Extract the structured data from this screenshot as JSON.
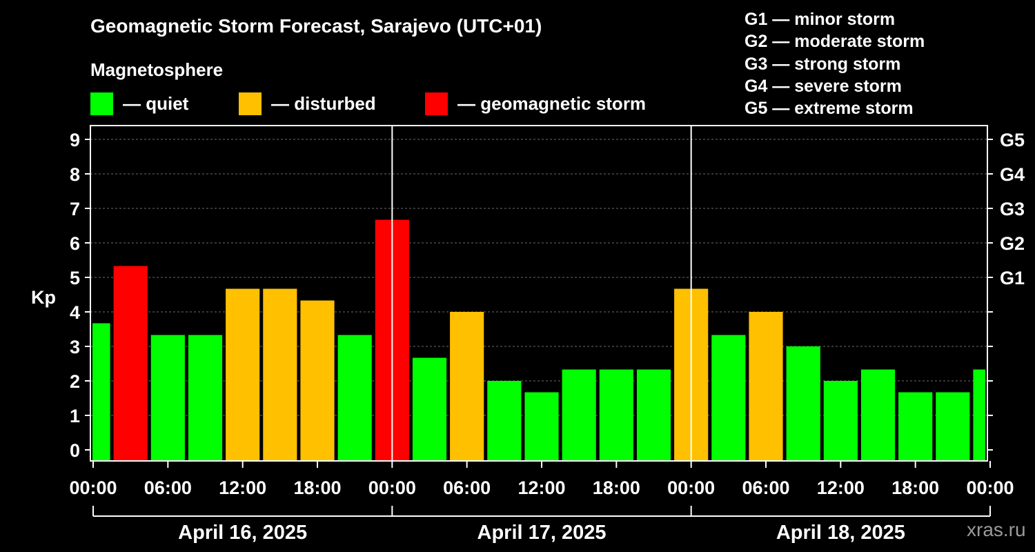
{
  "header": {
    "title": "Geomagnetic Storm Forecast, Sarajevo (UTC+01)",
    "subtitle": "Magnetosphere"
  },
  "legend": [
    {
      "label": "— quiet",
      "color": "#00ff00"
    },
    {
      "label": "— disturbed",
      "color": "#ffc000"
    },
    {
      "label": "— geomagnetic storm",
      "color": "#ff0000"
    }
  ],
  "storm_scale": [
    "G1 — minor storm",
    "G2 — moderate storm",
    "G3 — strong storm",
    "G4 — severe storm",
    "G5 — extreme storm"
  ],
  "watermark": "xras.ru",
  "colors": {
    "quiet": "#00ff00",
    "disturbed": "#ffc000",
    "storm": "#ff0000"
  },
  "chart_data": {
    "type": "bar",
    "title": "Geomagnetic Storm Forecast, Sarajevo (UTC+01)",
    "ylabel": "Kp",
    "ylim": [
      0,
      9
    ],
    "yticks": [
      "0",
      "1",
      "2",
      "3",
      "4",
      "5",
      "6",
      "7",
      "8",
      "9"
    ],
    "right_ticks": [
      {
        "kp": 5,
        "label": "G1"
      },
      {
        "kp": 6,
        "label": "G2"
      },
      {
        "kp": 7,
        "label": "G3"
      },
      {
        "kp": 8,
        "label": "G4"
      },
      {
        "kp": 9,
        "label": "G5"
      }
    ],
    "xtick_labels": [
      "00:00",
      "06:00",
      "12:00",
      "18:00",
      "00:00",
      "06:00",
      "12:00",
      "18:00",
      "00:00",
      "06:00",
      "12:00",
      "18:00",
      "00:00"
    ],
    "days": [
      "April 16, 2025",
      "April 17, 2025",
      "April 18, 2025"
    ],
    "grid": true,
    "bars": [
      {
        "time": "April 16, 2025 00:00",
        "kp": 3.67,
        "status": "quiet"
      },
      {
        "time": "April 16, 2025 03:00",
        "kp": 5.33,
        "status": "storm"
      },
      {
        "time": "April 16, 2025 06:00",
        "kp": 3.33,
        "status": "quiet"
      },
      {
        "time": "April 16, 2025 09:00",
        "kp": 3.33,
        "status": "quiet"
      },
      {
        "time": "April 16, 2025 12:00",
        "kp": 4.67,
        "status": "disturbed"
      },
      {
        "time": "April 16, 2025 15:00",
        "kp": 4.67,
        "status": "disturbed"
      },
      {
        "time": "April 16, 2025 18:00",
        "kp": 4.33,
        "status": "disturbed"
      },
      {
        "time": "April 16, 2025 21:00",
        "kp": 3.33,
        "status": "quiet"
      },
      {
        "time": "April 17, 2025 00:00",
        "kp": 6.67,
        "status": "storm"
      },
      {
        "time": "April 17, 2025 03:00",
        "kp": 2.67,
        "status": "quiet"
      },
      {
        "time": "April 17, 2025 06:00",
        "kp": 4.0,
        "status": "disturbed"
      },
      {
        "time": "April 17, 2025 09:00",
        "kp": 2.0,
        "status": "quiet"
      },
      {
        "time": "April 17, 2025 12:00",
        "kp": 1.67,
        "status": "quiet"
      },
      {
        "time": "April 17, 2025 15:00",
        "kp": 2.33,
        "status": "quiet"
      },
      {
        "time": "April 17, 2025 18:00",
        "kp": 2.33,
        "status": "quiet"
      },
      {
        "time": "April 17, 2025 21:00",
        "kp": 2.33,
        "status": "quiet"
      },
      {
        "time": "April 18, 2025 00:00",
        "kp": 4.67,
        "status": "disturbed"
      },
      {
        "time": "April 18, 2025 03:00",
        "kp": 3.33,
        "status": "quiet"
      },
      {
        "time": "April 18, 2025 06:00",
        "kp": 4.0,
        "status": "disturbed"
      },
      {
        "time": "April 18, 2025 09:00",
        "kp": 3.0,
        "status": "quiet"
      },
      {
        "time": "April 18, 2025 12:00",
        "kp": 2.0,
        "status": "quiet"
      },
      {
        "time": "April 18, 2025 15:00",
        "kp": 2.33,
        "status": "quiet"
      },
      {
        "time": "April 18, 2025 18:00",
        "kp": 1.67,
        "status": "quiet"
      },
      {
        "time": "April 18, 2025 21:00",
        "kp": 1.67,
        "status": "quiet"
      },
      {
        "time": "April 19, 2025 00:00",
        "kp": 2.33,
        "status": "quiet"
      }
    ]
  }
}
